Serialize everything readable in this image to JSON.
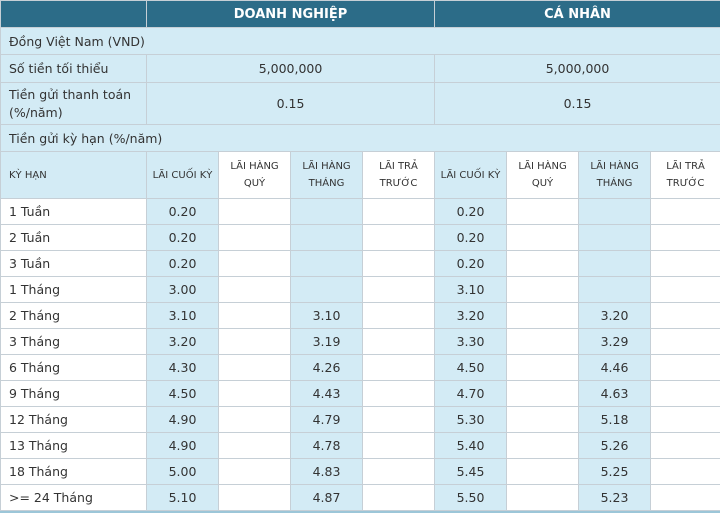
{
  "headers": {
    "business": "DOANH NGHIỆP",
    "individual": "CÁ NHÂN"
  },
  "currency_row": "Đồng Việt Nam (VND)",
  "min_amount": {
    "label": "Số tiền tối thiểu",
    "business": "5,000,000",
    "individual": "5,000,000"
  },
  "payment_deposit": {
    "label": "Tiền gửi thanh toán (%/năm)",
    "business": "0.15",
    "individual": "0.15"
  },
  "term_deposit_row": "Tiền gửi kỳ hạn (%/năm)",
  "sub_headers": {
    "term": "KỲ HẠN",
    "end_of_term": "LÃI CUỐI KỲ",
    "quarterly": "LÃI HÀNG QUÝ",
    "monthly": "LÃI HÀNG THÁNG",
    "prepaid": "LÃI TRẢ TRƯỚC"
  },
  "rows": [
    {
      "term": "1 Tuần",
      "b_end": "0.20",
      "b_q": "",
      "b_m": "",
      "b_pre": "",
      "i_end": "0.20",
      "i_q": "",
      "i_m": "",
      "i_pre": ""
    },
    {
      "term": "2 Tuần",
      "b_end": "0.20",
      "b_q": "",
      "b_m": "",
      "b_pre": "",
      "i_end": "0.20",
      "i_q": "",
      "i_m": "",
      "i_pre": ""
    },
    {
      "term": "3 Tuần",
      "b_end": "0.20",
      "b_q": "",
      "b_m": "",
      "b_pre": "",
      "i_end": "0.20",
      "i_q": "",
      "i_m": "",
      "i_pre": ""
    },
    {
      "term": "1 Tháng",
      "b_end": "3.00",
      "b_q": "",
      "b_m": "",
      "b_pre": "",
      "i_end": "3.10",
      "i_q": "",
      "i_m": "",
      "i_pre": ""
    },
    {
      "term": "2 Tháng",
      "b_end": "3.10",
      "b_q": "",
      "b_m": "3.10",
      "b_pre": "",
      "i_end": "3.20",
      "i_q": "",
      "i_m": "3.20",
      "i_pre": ""
    },
    {
      "term": "3 Tháng",
      "b_end": "3.20",
      "b_q": "",
      "b_m": "3.19",
      "b_pre": "",
      "i_end": "3.30",
      "i_q": "",
      "i_m": "3.29",
      "i_pre": ""
    },
    {
      "term": "6 Tháng",
      "b_end": "4.30",
      "b_q": "",
      "b_m": "4.26",
      "b_pre": "",
      "i_end": "4.50",
      "i_q": "",
      "i_m": "4.46",
      "i_pre": ""
    },
    {
      "term": "9 Tháng",
      "b_end": "4.50",
      "b_q": "",
      "b_m": "4.43",
      "b_pre": "",
      "i_end": "4.70",
      "i_q": "",
      "i_m": "4.63",
      "i_pre": ""
    },
    {
      "term": "12 Tháng",
      "b_end": "4.90",
      "b_q": "",
      "b_m": "4.79",
      "b_pre": "",
      "i_end": "5.30",
      "i_q": "",
      "i_m": "5.18",
      "i_pre": ""
    },
    {
      "term": "13 Tháng",
      "b_end": "4.90",
      "b_q": "",
      "b_m": "4.78",
      "b_pre": "",
      "i_end": "5.40",
      "i_q": "",
      "i_m": "5.26",
      "i_pre": ""
    },
    {
      "term": "18 Tháng",
      "b_end": "5.00",
      "b_q": "",
      "b_m": "4.83",
      "b_pre": "",
      "i_end": "5.45",
      "i_q": "",
      "i_m": "5.25",
      "i_pre": ""
    },
    {
      "term": ">= 24 Tháng",
      "b_end": "5.10",
      "b_q": "",
      "b_m": "4.87",
      "b_pre": "",
      "i_end": "5.50",
      "i_q": "",
      "i_m": "5.23",
      "i_pre": ""
    }
  ]
}
